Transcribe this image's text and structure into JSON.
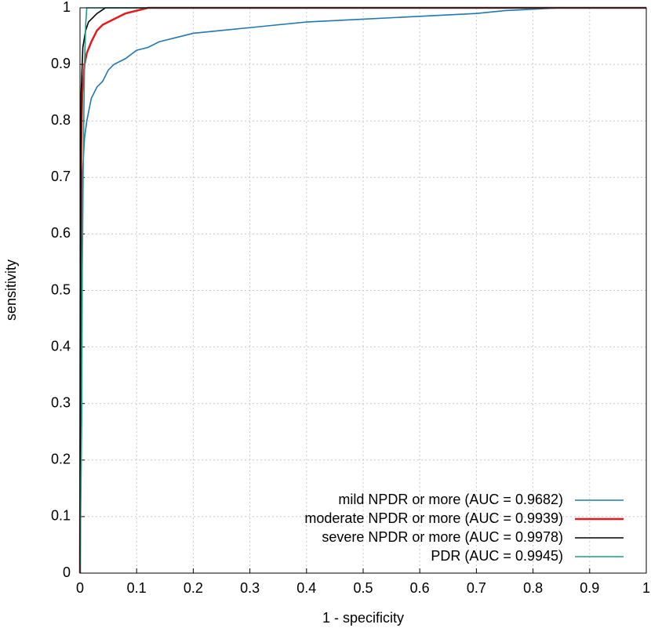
{
  "chart_data": {
    "type": "line",
    "x_label": "1 - specificity",
    "y_label": "sensitivity",
    "xlim": [
      0,
      1
    ],
    "ylim": [
      0,
      1
    ],
    "xticks": [
      0,
      0.1,
      0.2,
      0.3,
      0.4,
      0.5,
      0.6,
      0.7,
      0.8,
      0.9,
      1
    ],
    "yticks": [
      0,
      0.1,
      0.2,
      0.3,
      0.4,
      0.5,
      0.6,
      0.7,
      0.8,
      0.9,
      1
    ],
    "grid": true,
    "legend": "lower-right",
    "series": [
      {
        "name": "mild NPDR or more (AUC = 0.9682)",
        "color": "#1f78b4",
        "x": [
          0,
          0.001,
          0.002,
          0.004,
          0.008,
          0.012,
          0.02,
          0.03,
          0.04,
          0.05,
          0.06,
          0.08,
          0.1,
          0.12,
          0.14,
          0.18,
          0.2,
          0.25,
          0.3,
          0.35,
          0.4,
          0.5,
          0.6,
          0.7,
          0.75,
          0.85,
          1
        ],
        "values": [
          0,
          0.27,
          0.55,
          0.7,
          0.77,
          0.8,
          0.84,
          0.86,
          0.87,
          0.89,
          0.9,
          0.91,
          0.925,
          0.93,
          0.94,
          0.95,
          0.955,
          0.96,
          0.965,
          0.97,
          0.975,
          0.98,
          0.985,
          0.99,
          0.995,
          1,
          1
        ]
      },
      {
        "name": "moderate NPDR or more (AUC = 0.9939)",
        "color": "#e41a1c",
        "x": [
          0,
          0.001,
          0.002,
          0.004,
          0.008,
          0.012,
          0.02,
          0.03,
          0.04,
          0.06,
          0.08,
          0.1,
          0.12,
          1
        ],
        "values": [
          0,
          0.5,
          0.75,
          0.85,
          0.9,
          0.92,
          0.94,
          0.96,
          0.97,
          0.98,
          0.99,
          0.995,
          1,
          1
        ]
      },
      {
        "name": "severe NPDR or more (AUC = 0.9978)",
        "color": "#000000",
        "x": [
          0,
          0.001,
          0.002,
          0.005,
          0.01,
          0.015,
          0.02,
          0.03,
          0.045,
          1
        ],
        "values": [
          0,
          0.6,
          0.85,
          0.93,
          0.96,
          0.975,
          0.98,
          0.99,
          1,
          1
        ]
      },
      {
        "name": "PDR (AUC = 0.9945)",
        "color": "#1b9e8a",
        "x": [
          0,
          0.003,
          0.004,
          0.006,
          0.008,
          0.01,
          0.012,
          1
        ],
        "values": [
          0,
          0.27,
          0.53,
          0.75,
          0.9,
          0.97,
          1,
          1
        ]
      }
    ]
  }
}
